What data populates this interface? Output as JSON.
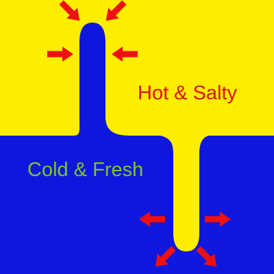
{
  "colors": {
    "hot_salty_water": "#FFEE00",
    "cold_fresh_water": "#0F17DD",
    "hot_label": "#DD1111",
    "cold_label": "#7BC62A",
    "arrow": "#EE1111"
  },
  "labels": {
    "hot_salty": "Hot & Salty",
    "cold_fresh": "Cold & Fresh"
  },
  "arrows": [
    {
      "name": "arrow-upper-finger-top-left",
      "direction": "down-right"
    },
    {
      "name": "arrow-upper-finger-top-right",
      "direction": "down-left"
    },
    {
      "name": "arrow-upper-finger-left",
      "direction": "right"
    },
    {
      "name": "arrow-upper-finger-right",
      "direction": "left"
    },
    {
      "name": "arrow-lower-finger-left",
      "direction": "left"
    },
    {
      "name": "arrow-lower-finger-right",
      "direction": "right"
    },
    {
      "name": "arrow-lower-finger-bottom-left",
      "direction": "down-left"
    },
    {
      "name": "arrow-lower-finger-bottom-right",
      "direction": "down-right"
    }
  ]
}
